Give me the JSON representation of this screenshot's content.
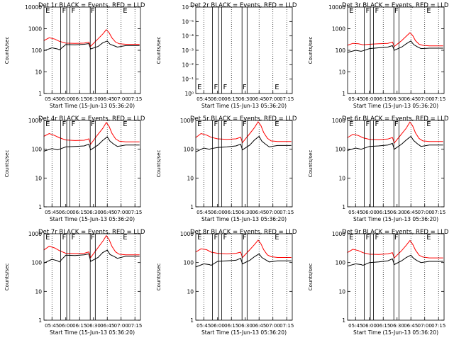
{
  "figure": {
    "x_tick_labels": [
      "05:45",
      "06:00",
      "06:15",
      "06:30",
      "06:45",
      "07:00",
      "07:15"
    ],
    "xlabel": "Start Time (15-Jun-13 05:36:20)",
    "ylabel": "Counts/sec",
    "colors": {
      "events": "#000000",
      "lld": "#ff0000",
      "axes": "#000000"
    }
  },
  "chart_data": [
    {
      "type": "line",
      "title": "Det 1r BLACK = Events, RED = LLD",
      "ylabel": "Counts/sec",
      "xlabel": "Start Time (15-Jun-13 05:36:20)",
      "yscale": "log",
      "ylim": [
        1,
        10000
      ],
      "y_tick_labels": [
        "1",
        "10",
        "100",
        "1000",
        "10000"
      ],
      "xlim": [
        "05:36:20",
        "07:21:00"
      ],
      "flags": [
        "E",
        "F",
        "F",
        "F",
        "E"
      ],
      "series": [
        {
          "color": "#000000",
          "times": [
            "05:36",
            "05:45",
            "05:51",
            "05:53",
            "06:00",
            "06:10",
            "06:20",
            "06:25",
            "06:27",
            "06:35",
            "06:40",
            "06:45",
            "06:48",
            "06:52",
            "06:56",
            "07:05",
            "07:15",
            "07:20"
          ],
          "values": [
            95,
            130,
            115,
            105,
            185,
            180,
            190,
            205,
            115,
            150,
            220,
            270,
            190,
            165,
            140,
            165,
            165,
            165
          ]
        },
        {
          "color": "#ff0000",
          "times": [
            "05:36",
            "05:42",
            "05:48",
            "05:53",
            "06:00",
            "06:10",
            "06:20",
            "06:25",
            "06:27",
            "06:35",
            "06:40",
            "06:44",
            "06:47",
            "06:50",
            "06:54",
            "06:58",
            "07:05",
            "07:15",
            "07:20"
          ],
          "values": [
            280,
            380,
            330,
            260,
            215,
            210,
            215,
            240,
            155,
            340,
            560,
            900,
            650,
            380,
            240,
            200,
            190,
            190,
            190
          ]
        }
      ]
    },
    {
      "type": "line",
      "title": "Det 2r BLACK = Events, RED = LLD",
      "ylabel": "Counts/sec",
      "xlabel": "Start Time (15-Jun-13 05:36:20)",
      "yscale": "log",
      "ylim": [
        1,
        1e-06
      ],
      "y_tick_labels": [
        "10⁰",
        "10⁻¹",
        "10⁻²",
        "10⁻³",
        "10⁻⁴",
        "10⁻⁵",
        "10⁻⁶"
      ],
      "xlim": [
        "05:36:20",
        "07:21:00"
      ],
      "flags": [
        "E",
        "F",
        "F",
        "F",
        "E"
      ],
      "series": []
    },
    {
      "type": "line",
      "title": "Det 3r BLACK = Events, RED = LLD",
      "ylabel": "Counts/sec",
      "xlabel": "Start Time (15-Jun-13 05:36:20)",
      "yscale": "log",
      "ylim": [
        1,
        10000
      ],
      "y_tick_labels": [
        "1",
        "10",
        "100",
        "1000",
        "10000"
      ],
      "xlim": [
        "05:36:20",
        "07:21:00"
      ],
      "flags": [
        "E",
        "F",
        "F",
        "F",
        "E"
      ],
      "series": [
        {
          "color": "#000000",
          "times": [
            "05:36",
            "05:45",
            "05:51",
            "05:53",
            "06:00",
            "06:10",
            "06:20",
            "06:25",
            "06:27",
            "06:35",
            "06:40",
            "06:45",
            "06:48",
            "06:52",
            "06:56",
            "07:05",
            "07:15",
            "07:20"
          ],
          "values": [
            80,
            100,
            90,
            95,
            120,
            130,
            140,
            165,
            100,
            140,
            200,
            270,
            185,
            145,
            120,
            125,
            125,
            125
          ]
        },
        {
          "color": "#ff0000",
          "times": [
            "05:36",
            "05:42",
            "05:48",
            "05:53",
            "06:00",
            "06:10",
            "06:20",
            "06:25",
            "06:27",
            "06:35",
            "06:40",
            "06:44",
            "06:47",
            "06:50",
            "06:54",
            "06:58",
            "07:05",
            "07:15",
            "07:20"
          ],
          "values": [
            170,
            210,
            200,
            180,
            190,
            200,
            210,
            240,
            150,
            280,
            450,
            650,
            480,
            280,
            190,
            170,
            160,
            160,
            160
          ]
        }
      ]
    },
    {
      "type": "line",
      "title": "Det 4r BLACK = Events, RED = LLD",
      "ylabel": "Counts/sec",
      "xlabel": "Start Time (15-Jun-13 05:36:20)",
      "yscale": "log",
      "ylim": [
        1,
        1000
      ],
      "y_tick_labels": [
        "1",
        "10",
        "100",
        "1000"
      ],
      "xlim": [
        "05:36:20",
        "07:21:00"
      ],
      "flags": [
        "E",
        "F",
        "F",
        "F",
        "E"
      ],
      "series": [
        {
          "color": "#000000",
          "times": [
            "05:36",
            "05:45",
            "05:51",
            "05:53",
            "06:00",
            "06:10",
            "06:20",
            "06:25",
            "06:27",
            "06:35",
            "06:40",
            "06:45",
            "06:48",
            "06:52",
            "06:56",
            "07:05",
            "07:15",
            "07:20"
          ],
          "values": [
            85,
            105,
            95,
            100,
            120,
            125,
            130,
            150,
            95,
            140,
            200,
            270,
            190,
            150,
            125,
            140,
            140,
            140
          ]
        },
        {
          "color": "#ff0000",
          "times": [
            "05:36",
            "05:42",
            "05:48",
            "05:53",
            "06:00",
            "06:10",
            "06:20",
            "06:25",
            "06:27",
            "06:35",
            "06:40",
            "06:44",
            "06:47",
            "06:50",
            "06:54",
            "06:58",
            "07:05",
            "07:15",
            "07:20"
          ],
          "values": [
            280,
            350,
            300,
            250,
            210,
            200,
            205,
            230,
            150,
            330,
            520,
            850,
            620,
            360,
            230,
            190,
            180,
            180,
            180
          ]
        }
      ]
    },
    {
      "type": "line",
      "title": "Det 5r BLACK = Events, RED = LLD",
      "ylabel": "Counts/sec",
      "xlabel": "Start Time (15-Jun-13 05:36:20)",
      "yscale": "log",
      "ylim": [
        1,
        1000
      ],
      "y_tick_labels": [
        "1",
        "10",
        "100",
        "1000"
      ],
      "xlim": [
        "05:36:20",
        "07:21:00"
      ],
      "flags": [
        "E",
        "F",
        "F",
        "F",
        "E"
      ],
      "series": [
        {
          "color": "#000000",
          "times": [
            "05:36",
            "05:45",
            "05:51",
            "05:53",
            "06:00",
            "06:10",
            "06:20",
            "06:25",
            "06:27",
            "06:35",
            "06:40",
            "06:45",
            "06:48",
            "06:52",
            "06:56",
            "07:05",
            "07:15",
            "07:20"
          ],
          "values": [
            80,
            110,
            100,
            105,
            115,
            120,
            130,
            150,
            95,
            140,
            210,
            280,
            190,
            150,
            120,
            135,
            135,
            135
          ]
        },
        {
          "color": "#ff0000",
          "times": [
            "05:36",
            "05:42",
            "05:48",
            "05:53",
            "06:00",
            "06:10",
            "06:20",
            "06:25",
            "06:27",
            "06:35",
            "06:40",
            "06:44",
            "06:47",
            "06:50",
            "06:54",
            "06:58",
            "07:05",
            "07:15",
            "07:20"
          ],
          "values": [
            250,
            350,
            310,
            260,
            230,
            220,
            230,
            260,
            170,
            350,
            560,
            900,
            660,
            380,
            240,
            195,
            185,
            185,
            185
          ]
        }
      ]
    },
    {
      "type": "line",
      "title": "Det 6r BLACK = Events, RED = LLD",
      "ylabel": "Counts/sec",
      "xlabel": "Start Time (15-Jun-13 05:36:20)",
      "yscale": "log",
      "ylim": [
        1,
        1000
      ],
      "y_tick_labels": [
        "1",
        "10",
        "100",
        "1000"
      ],
      "xlim": [
        "05:36:20",
        "07:21:00"
      ],
      "flags": [
        "E",
        "F",
        "F",
        "F",
        "E"
      ],
      "series": [
        {
          "color": "#000000",
          "times": [
            "05:36",
            "05:45",
            "05:51",
            "05:53",
            "06:00",
            "06:10",
            "06:20",
            "06:25",
            "06:27",
            "06:35",
            "06:40",
            "06:45",
            "06:48",
            "06:52",
            "06:56",
            "07:05",
            "07:15",
            "07:20"
          ],
          "values": [
            90,
            110,
            100,
            105,
            125,
            130,
            140,
            160,
            100,
            150,
            210,
            280,
            200,
            155,
            125,
            140,
            140,
            140
          ]
        },
        {
          "color": "#ff0000",
          "times": [
            "05:36",
            "05:42",
            "05:48",
            "05:53",
            "06:00",
            "06:10",
            "06:20",
            "06:25",
            "06:27",
            "06:35",
            "06:40",
            "06:44",
            "06:47",
            "06:50",
            "06:54",
            "06:58",
            "07:05",
            "07:15",
            "07:20"
          ],
          "values": [
            250,
            330,
            300,
            250,
            220,
            215,
            225,
            255,
            165,
            340,
            540,
            880,
            640,
            370,
            235,
            195,
            185,
            185,
            185
          ]
        }
      ]
    },
    {
      "type": "line",
      "title": "Det 7r BLACK = Events, RED = LLD",
      "ylabel": "Counts/sec",
      "xlabel": "Start Time (15-Jun-13 05:36:20)",
      "yscale": "log",
      "ylim": [
        1,
        1000
      ],
      "y_tick_labels": [
        "1",
        "10",
        "100",
        "1000"
      ],
      "xlim": [
        "05:36:20",
        "07:21:00"
      ],
      "flags": [
        "E",
        "F",
        "F",
        "F",
        "E"
      ],
      "series": [
        {
          "color": "#000000",
          "times": [
            "05:36",
            "05:45",
            "05:51",
            "05:53",
            "06:00",
            "06:10",
            "06:20",
            "06:25",
            "06:27",
            "06:35",
            "06:40",
            "06:45",
            "06:48",
            "06:52",
            "06:56",
            "07:05",
            "07:15",
            "07:20"
          ],
          "values": [
            95,
            130,
            115,
            105,
            180,
            175,
            185,
            200,
            110,
            150,
            220,
            270,
            190,
            165,
            140,
            165,
            165,
            165
          ]
        },
        {
          "color": "#ff0000",
          "times": [
            "05:36",
            "05:42",
            "05:48",
            "05:53",
            "06:00",
            "06:10",
            "06:20",
            "06:25",
            "06:27",
            "06:35",
            "06:40",
            "06:44",
            "06:47",
            "06:50",
            "06:54",
            "06:58",
            "07:05",
            "07:15",
            "07:20"
          ],
          "values": [
            270,
            370,
            320,
            260,
            210,
            205,
            210,
            235,
            150,
            330,
            540,
            860,
            630,
            370,
            235,
            195,
            185,
            185,
            185
          ]
        }
      ]
    },
    {
      "type": "line",
      "title": "Det 8r BLACK = Events, RED = LLD",
      "ylabel": "Counts/sec",
      "xlabel": "Start Time (15-Jun-13 05:36:20)",
      "yscale": "log",
      "ylim": [
        1,
        1000
      ],
      "y_tick_labels": [
        "1",
        "10",
        "100",
        "1000"
      ],
      "xlim": [
        "05:36:20",
        "07:21:00"
      ],
      "flags": [
        "E",
        "F",
        "F",
        "F",
        "E"
      ],
      "series": [
        {
          "color": "#000000",
          "times": [
            "05:36",
            "05:45",
            "05:51",
            "05:53",
            "06:00",
            "06:10",
            "06:20",
            "06:25",
            "06:27",
            "06:35",
            "06:40",
            "06:45",
            "06:48",
            "06:52",
            "06:56",
            "07:05",
            "07:15",
            "07:20"
          ],
          "values": [
            70,
            90,
            85,
            80,
            110,
            115,
            120,
            140,
            90,
            120,
            160,
            200,
            150,
            125,
            105,
            115,
            115,
            115
          ]
        },
        {
          "color": "#ff0000",
          "times": [
            "05:36",
            "05:42",
            "05:48",
            "05:53",
            "06:00",
            "06:10",
            "06:20",
            "06:25",
            "06:27",
            "06:35",
            "06:40",
            "06:44",
            "06:47",
            "06:50",
            "06:54",
            "06:58",
            "07:05",
            "07:15",
            "07:20"
          ],
          "values": [
            230,
            300,
            280,
            230,
            210,
            200,
            210,
            230,
            150,
            280,
            420,
            600,
            450,
            280,
            185,
            160,
            150,
            150,
            150
          ]
        }
      ]
    },
    {
      "type": "line",
      "title": "Det 9r BLACK = Events, RED = LLD",
      "ylabel": "Counts/sec",
      "xlabel": "Start Time (15-Jun-13 05:36:20)",
      "yscale": "log",
      "ylim": [
        1,
        1000
      ],
      "y_tick_labels": [
        "1",
        "10",
        "100",
        "1000"
      ],
      "xlim": [
        "05:36:20",
        "07:21:00"
      ],
      "flags": [
        "E",
        "F",
        "F",
        "F",
        "E"
      ],
      "series": [
        {
          "color": "#000000",
          "times": [
            "05:36",
            "05:45",
            "05:51",
            "05:53",
            "06:00",
            "06:10",
            "06:20",
            "06:25",
            "06:27",
            "06:35",
            "06:40",
            "06:45",
            "06:48",
            "06:52",
            "06:56",
            "07:05",
            "07:15",
            "07:20"
          ],
          "values": [
            75,
            90,
            85,
            80,
            100,
            105,
            115,
            135,
            85,
            115,
            150,
            180,
            140,
            115,
            100,
            110,
            110,
            110
          ]
        },
        {
          "color": "#ff0000",
          "times": [
            "05:36",
            "05:42",
            "05:48",
            "05:53",
            "06:00",
            "06:10",
            "06:20",
            "06:25",
            "06:27",
            "06:35",
            "06:40",
            "06:44",
            "06:47",
            "06:50",
            "06:54",
            "06:58",
            "07:05",
            "07:15",
            "07:20"
          ],
          "values": [
            220,
            290,
            260,
            220,
            195,
            190,
            200,
            220,
            145,
            260,
            400,
            580,
            430,
            270,
            180,
            155,
            145,
            145,
            145
          ]
        }
      ]
    }
  ]
}
